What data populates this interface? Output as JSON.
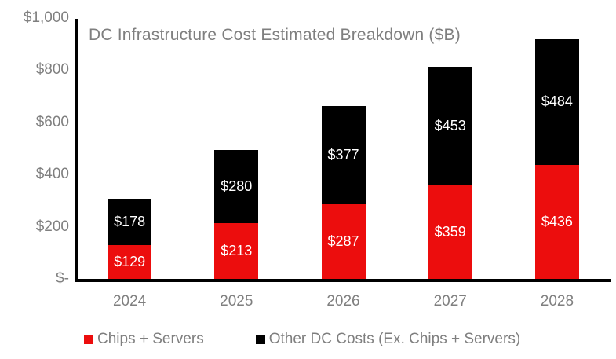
{
  "chart_data": {
    "type": "bar",
    "stacked": true,
    "title": "DC Infrastructure Cost Estimated Breakdown ($B)",
    "categories": [
      "2024",
      "2025",
      "2026",
      "2027",
      "2028"
    ],
    "series": [
      {
        "name": "Chips + Servers",
        "color": "#ec0d0d",
        "values": [
          129,
          213,
          287,
          359,
          436
        ],
        "labels": [
          "$129",
          "$213",
          "$287",
          "$359",
          "$436"
        ]
      },
      {
        "name": "Other DC Costs (Ex. Chips + Servers)",
        "color": "#000000",
        "values": [
          178,
          280,
          377,
          453,
          484
        ],
        "labels": [
          "$178",
          "$280",
          "$377",
          "$453",
          "$484"
        ]
      }
    ],
    "ylim": [
      0,
      1000
    ],
    "yticks": [
      {
        "value": 0,
        "label": "$-"
      },
      {
        "value": 200,
        "label": "$200"
      },
      {
        "value": 400,
        "label": "$400"
      },
      {
        "value": 600,
        "label": "$600"
      },
      {
        "value": 800,
        "label": "$800"
      },
      {
        "value": 1000,
        "label": "$1,000"
      }
    ],
    "grid": false,
    "legend_position": "bottom",
    "data_label_color": "#ffffff",
    "axis_color": "#000000",
    "text_color": "#7f7f7f"
  },
  "legend": {
    "items": [
      {
        "label": "Chips + Servers",
        "color": "#ec0d0d"
      },
      {
        "label": "Other DC Costs (Ex. Chips + Servers)",
        "color": "#000000"
      }
    ]
  }
}
